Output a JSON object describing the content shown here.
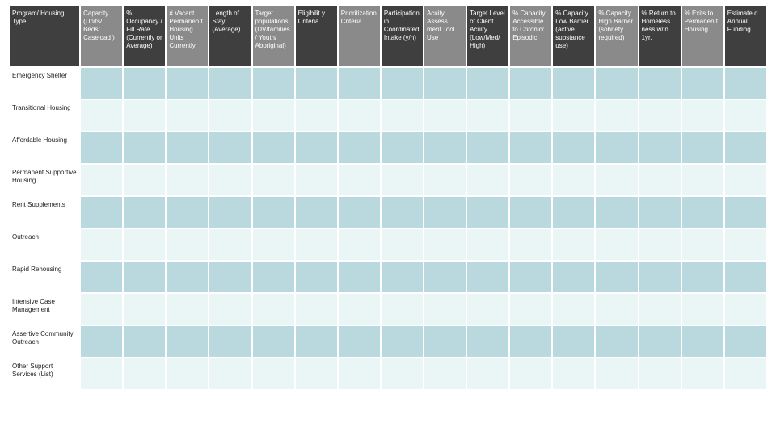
{
  "table": {
    "header_colors_alternating": [
      "#3f3f3f",
      "#8a8a8a"
    ],
    "row_band_colors": {
      "odd": "#b9d9de",
      "even": "#eaf5f6"
    },
    "columns": [
      {
        "label": "Program/ Housing Type",
        "width": "wide"
      },
      {
        "label": "Capacity (Units/ Beds/ Caseload )",
        "width": "narrow"
      },
      {
        "label": "% Occupancy / Fill Rate (Currently or Average)",
        "width": "narrow"
      },
      {
        "label": "# Vacant Permanen t Housing Units Currently",
        "width": "narrow"
      },
      {
        "label": "Length of Stay (Average)",
        "width": "narrow"
      },
      {
        "label": "Target populations (DV/families/ Youth/ Aboriginal)",
        "width": "narrow"
      },
      {
        "label": "Eligibilit y Criteria",
        "width": "narrow"
      },
      {
        "label": "Prioritization Criteria",
        "width": "narrow"
      },
      {
        "label": "Participation in Coordinated Intake (y/n)",
        "width": "narrow"
      },
      {
        "label": "Acuity Assess ment Tool Use",
        "width": "narrow"
      },
      {
        "label": "Target Level of Client Acuity (Low/Med/ High)",
        "width": "narrow"
      },
      {
        "label": "% Capacity Accessible to Chronic/ Episodic",
        "width": "narrow"
      },
      {
        "label": "% Capacity. Low Barrier (active substance use)",
        "width": "narrow"
      },
      {
        "label": "% Capacity. High Barrier (sobriety required)",
        "width": "narrow"
      },
      {
        "label": "% Return to Homeless ness w/in 1yr.",
        "width": "narrow"
      },
      {
        "label": "% Exits to Permanen t Housing",
        "width": "narrow"
      },
      {
        "label": "Estimate d Annual Funding",
        "width": "narrow"
      }
    ],
    "rows": [
      "Emergency Shelter",
      "Transitional Housing",
      "Affordable Housing",
      "Permanent Supportive Housing",
      "Rent Supplements",
      "Outreach",
      "Rapid Rehousing",
      "Intensive Case Management",
      "Assertive Community Outreach",
      "Other Support Services (List)"
    ]
  }
}
